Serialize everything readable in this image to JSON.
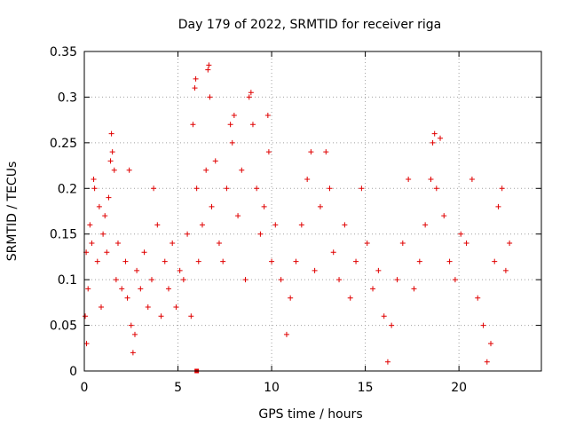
{
  "chart_data": {
    "type": "scatter",
    "title": "Day 179 of 2022, SRMTID for receiver riga",
    "xlabel": "GPS time / hours",
    "ylabel": "SRMTID / TECUs",
    "xlim": [
      0,
      24.4
    ],
    "ylim": [
      0,
      0.35
    ],
    "x_ticks": [
      0,
      5,
      10,
      15,
      20
    ],
    "x_tick_labels": [
      "0",
      "5",
      "10",
      "15",
      "20"
    ],
    "y_ticks": [
      0,
      0.05,
      0.1,
      0.15,
      0.2,
      0.25,
      0.3,
      0.35
    ],
    "y_tick_labels": [
      "0",
      "0.05",
      "0.1",
      "0.15",
      "0.2",
      "0.25",
      "0.3",
      "0.35"
    ],
    "grid": true,
    "marker": "plus",
    "color": "#e00000",
    "x_range_of_data": [
      0,
      22.8
    ],
    "series": [
      {
        "values_summary_note": "",
        "points": [
          [
            0.05,
            0.06
          ],
          [
            0.1,
            0.13
          ],
          [
            0.12,
            0.03
          ],
          [
            0.2,
            0.09
          ],
          [
            0.3,
            0.16
          ],
          [
            0.4,
            0.14
          ],
          [
            0.5,
            0.21
          ],
          [
            0.55,
            0.2
          ],
          [
            0.7,
            0.12
          ],
          [
            0.8,
            0.18
          ],
          [
            0.9,
            0.07
          ],
          [
            1.0,
            0.15
          ],
          [
            1.1,
            0.17
          ],
          [
            1.2,
            0.13
          ],
          [
            1.3,
            0.19
          ],
          [
            1.4,
            0.23
          ],
          [
            1.45,
            0.26
          ],
          [
            1.5,
            0.24
          ],
          [
            1.6,
            0.22
          ],
          [
            1.7,
            0.1
          ],
          [
            1.8,
            0.14
          ],
          [
            2.0,
            0.09
          ],
          [
            2.2,
            0.12
          ],
          [
            2.3,
            0.08
          ],
          [
            2.4,
            0.22
          ],
          [
            2.5,
            0.05
          ],
          [
            2.6,
            0.02
          ],
          [
            2.7,
            0.04
          ],
          [
            2.8,
            0.11
          ],
          [
            3.0,
            0.09
          ],
          [
            3.2,
            0.13
          ],
          [
            3.4,
            0.07
          ],
          [
            3.6,
            0.1
          ],
          [
            3.7,
            0.2
          ],
          [
            3.9,
            0.16
          ],
          [
            4.1,
            0.06
          ],
          [
            4.3,
            0.12
          ],
          [
            4.5,
            0.09
          ],
          [
            4.7,
            0.14
          ],
          [
            4.9,
            0.07
          ],
          [
            5.1,
            0.11
          ],
          [
            5.3,
            0.1
          ],
          [
            5.5,
            0.15
          ],
          [
            5.7,
            0.06
          ],
          [
            5.8,
            0.27
          ],
          [
            5.9,
            0.31
          ],
          [
            5.95,
            0.32
          ],
          [
            6.0,
            0.2
          ],
          [
            6.1,
            0.12
          ],
          [
            6.3,
            0.16
          ],
          [
            6.5,
            0.22
          ],
          [
            6.6,
            0.33
          ],
          [
            6.65,
            0.335
          ],
          [
            6.7,
            0.3
          ],
          [
            6.8,
            0.18
          ],
          [
            7.0,
            0.23
          ],
          [
            7.2,
            0.14
          ],
          [
            7.4,
            0.12
          ],
          [
            7.6,
            0.2
          ],
          [
            7.8,
            0.27
          ],
          [
            7.9,
            0.25
          ],
          [
            8.0,
            0.28
          ],
          [
            8.2,
            0.17
          ],
          [
            8.4,
            0.22
          ],
          [
            8.6,
            0.1
          ],
          [
            8.8,
            0.3
          ],
          [
            8.9,
            0.305
          ],
          [
            9.0,
            0.27
          ],
          [
            9.2,
            0.2
          ],
          [
            9.4,
            0.15
          ],
          [
            9.6,
            0.18
          ],
          [
            9.8,
            0.28
          ],
          [
            9.85,
            0.24
          ],
          [
            10.0,
            0.12
          ],
          [
            10.2,
            0.16
          ],
          [
            10.5,
            0.1
          ],
          [
            10.8,
            0.04
          ],
          [
            11.0,
            0.08
          ],
          [
            11.3,
            0.12
          ],
          [
            11.6,
            0.16
          ],
          [
            11.9,
            0.21
          ],
          [
            12.1,
            0.24
          ],
          [
            12.3,
            0.11
          ],
          [
            12.6,
            0.18
          ],
          [
            12.9,
            0.24
          ],
          [
            13.1,
            0.2
          ],
          [
            13.3,
            0.13
          ],
          [
            13.6,
            0.1
          ],
          [
            13.9,
            0.16
          ],
          [
            14.2,
            0.08
          ],
          [
            14.5,
            0.12
          ],
          [
            14.8,
            0.2
          ],
          [
            15.1,
            0.14
          ],
          [
            15.4,
            0.09
          ],
          [
            15.7,
            0.11
          ],
          [
            16.0,
            0.06
          ],
          [
            16.2,
            0.01
          ],
          [
            16.4,
            0.05
          ],
          [
            16.7,
            0.1
          ],
          [
            17.0,
            0.14
          ],
          [
            17.3,
            0.21
          ],
          [
            17.6,
            0.09
          ],
          [
            17.9,
            0.12
          ],
          [
            18.2,
            0.16
          ],
          [
            18.5,
            0.21
          ],
          [
            18.6,
            0.25
          ],
          [
            18.7,
            0.26
          ],
          [
            18.8,
            0.2
          ],
          [
            19.0,
            0.255
          ],
          [
            19.2,
            0.17
          ],
          [
            19.5,
            0.12
          ],
          [
            19.8,
            0.1
          ],
          [
            20.1,
            0.15
          ],
          [
            20.4,
            0.14
          ],
          [
            20.7,
            0.21
          ],
          [
            21.0,
            0.08
          ],
          [
            21.3,
            0.05
          ],
          [
            21.5,
            0.01
          ],
          [
            21.7,
            0.03
          ],
          [
            21.9,
            0.12
          ],
          [
            22.1,
            0.18
          ],
          [
            22.3,
            0.2
          ],
          [
            22.5,
            0.11
          ],
          [
            22.7,
            0.14
          ]
        ]
      }
    ],
    "special_markers": [
      {
        "x": 6.0,
        "y": 0.0,
        "shape": "square"
      }
    ]
  }
}
